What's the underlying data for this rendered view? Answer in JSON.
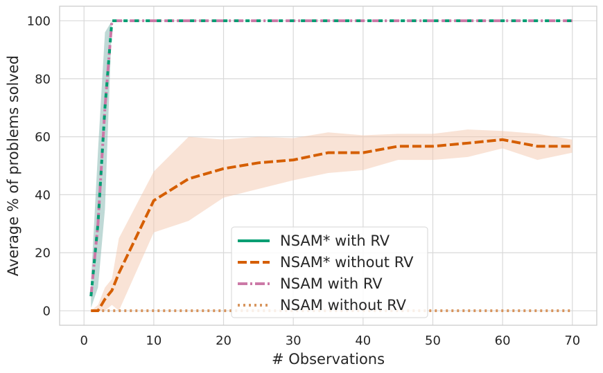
{
  "chart_data": {
    "type": "line",
    "title": "",
    "xlabel": "# Observations",
    "ylabel": "Average % of problems solved",
    "xlim": [
      -3.5,
      73.5
    ],
    "ylim": [
      -5,
      105
    ],
    "xticks": [
      0,
      10,
      20,
      30,
      40,
      50,
      60,
      70
    ],
    "yticks": [
      0,
      20,
      40,
      60,
      80,
      100
    ],
    "grid": true,
    "legend_position": "lower-center",
    "series": [
      {
        "name": "NSAM* with RV",
        "color": "#009e73",
        "style": "solid",
        "x": [
          1,
          2,
          3,
          4,
          5,
          10,
          15,
          20,
          25,
          30,
          35,
          40,
          45,
          50,
          55,
          60,
          65,
          70
        ],
        "values": [
          5,
          30,
          70,
          100,
          100,
          100,
          100,
          100,
          100,
          100,
          100,
          100,
          100,
          100,
          100,
          100,
          100,
          100
        ],
        "band_lower": [
          1,
          8,
          35,
          100,
          100,
          100,
          100,
          100,
          100,
          100,
          100,
          100,
          100,
          100,
          100,
          100,
          100,
          100
        ],
        "band_upper": [
          10,
          55,
          96,
          100,
          100,
          100,
          100,
          100,
          100,
          100,
          100,
          100,
          100,
          100,
          100,
          100,
          100,
          100
        ],
        "band_color": "#7fb3ad"
      },
      {
        "name": "NSAM* without RV",
        "color": "#d55e00",
        "style": "dashed",
        "x": [
          1,
          2,
          3,
          4,
          5,
          10,
          15,
          20,
          25,
          30,
          35,
          40,
          45,
          50,
          55,
          60,
          65,
          70
        ],
        "values": [
          0,
          0,
          4,
          7,
          13,
          38,
          45.5,
          49,
          51,
          52,
          54.5,
          54.5,
          56.7,
          56.7,
          57.8,
          59,
          56.7,
          56.7
        ],
        "band_lower": [
          0,
          0,
          0,
          2,
          0,
          27,
          31,
          39,
          42,
          45,
          47.5,
          48.5,
          52,
          52,
          53,
          56,
          52,
          54.5
        ],
        "band_upper": [
          0,
          2,
          8,
          11,
          25,
          48,
          60,
          59,
          60,
          59.5,
          61.5,
          60.5,
          61,
          61,
          62.5,
          62,
          61,
          59
        ],
        "band_color": "#f4c7ad"
      },
      {
        "name": "NSAM with RV",
        "color": "#cc79a7",
        "style": "dashdot",
        "x": [
          1,
          2,
          3,
          4,
          5,
          10,
          15,
          20,
          25,
          30,
          35,
          40,
          45,
          50,
          55,
          60,
          65,
          70
        ],
        "values": [
          5,
          30,
          70,
          100,
          100,
          100,
          100,
          100,
          100,
          100,
          100,
          100,
          100,
          100,
          100,
          100,
          100,
          100
        ]
      },
      {
        "name": "NSAM without RV",
        "color": "#d8965f",
        "style": "dotted",
        "x": [
          1,
          2,
          3,
          4,
          5,
          10,
          15,
          20,
          25,
          30,
          35,
          40,
          45,
          50,
          55,
          60,
          65,
          70
        ],
        "values": [
          0,
          0,
          0,
          0,
          0,
          0,
          0,
          0,
          0,
          0,
          0,
          0,
          0,
          0,
          0,
          0,
          0,
          0
        ]
      }
    ]
  }
}
